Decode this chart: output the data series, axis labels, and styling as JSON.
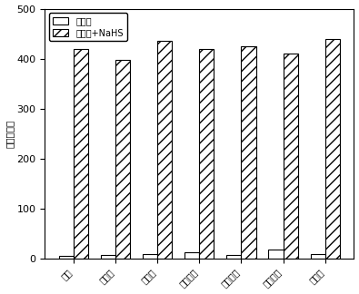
{
  "categories": [
    "空白",
    "丙氨酸",
    "甘氨酸",
    "含左基肽",
    "半胱氨酸",
    "半胱氨酸",
    "乙硫醇"
  ],
  "competitor_values": [
    5,
    8,
    10,
    12,
    8,
    18,
    10
  ],
  "competitor_nahs_values": [
    420,
    398,
    435,
    420,
    425,
    410,
    440
  ],
  "ylabel": "相对荧光度",
  "legend_label1": "竞争物",
  "legend_label2": "竞争物+NaHS",
  "ylim": [
    0,
    500
  ],
  "yticks": [
    0,
    100,
    200,
    300,
    400,
    500
  ],
  "bar_width": 0.35,
  "hatch_pattern": "///",
  "face_color1": "white",
  "face_color2": "white",
  "edge_color": "black",
  "background_color": "white"
}
